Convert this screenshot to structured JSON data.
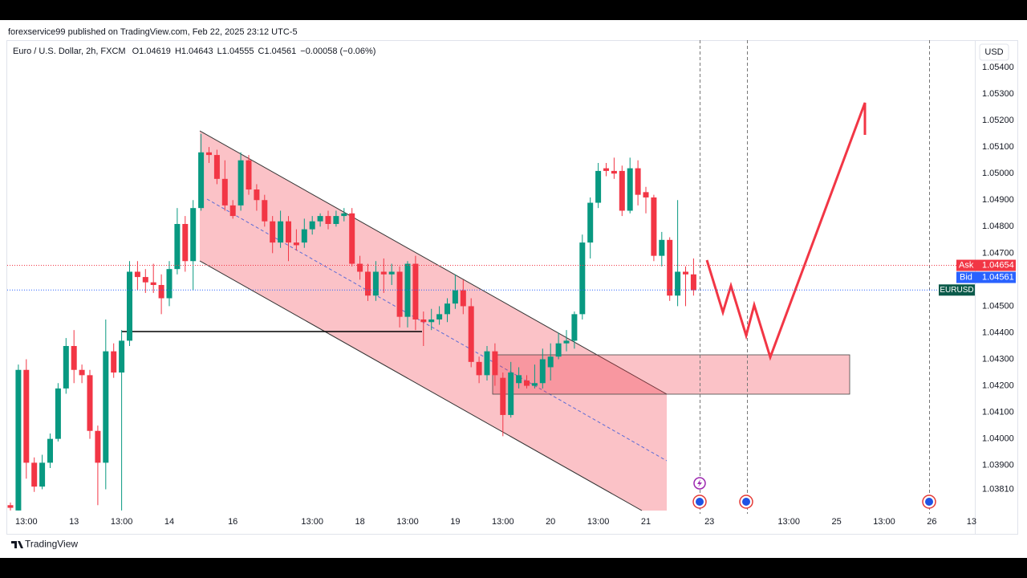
{
  "chart_data": {
    "type": "candlestick",
    "published": "forexservice99 published on TradingView.com, Feb 22, 2025 23:12 UTC-5",
    "title": "Euro / U.S. Dollar, 2h, FXCM",
    "legend_values": [
      "O1.04619",
      "H1.04643",
      "L1.04555",
      "C1.04561",
      "−0.00058 (−0.06%)"
    ],
    "currency": "USD",
    "ask_label": "Ask",
    "ask_price": 1.04654,
    "bid_label": "Bid",
    "bid_price": 1.04561,
    "symbol": "EURUSD",
    "brand": "TradingView",
    "up_color": "#089981",
    "down_color": "#f23645",
    "grid": false,
    "ylim": [
      1.03657,
      1.05503
    ],
    "yticks": [
      {
        "value": 1.054,
        "label": "1.05400"
      },
      {
        "value": 1.053,
        "label": "1.05300"
      },
      {
        "value": 1.052,
        "label": "1.05200"
      },
      {
        "value": 1.051,
        "label": "1.05100"
      },
      {
        "value": 1.05,
        "label": "1.05000"
      },
      {
        "value": 1.049,
        "label": "1.04900"
      },
      {
        "value": 1.048,
        "label": "1.04800"
      },
      {
        "value": 1.047,
        "label": "1.04700"
      },
      {
        "value": 1.045,
        "label": "1.04500"
      },
      {
        "value": 1.044,
        "label": "1.04400"
      },
      {
        "value": 1.043,
        "label": "1.04300"
      },
      {
        "value": 1.042,
        "label": "1.04200"
      },
      {
        "value": 1.041,
        "label": "1.04100"
      },
      {
        "value": 1.04,
        "label": "1.04000"
      },
      {
        "value": 1.039,
        "label": "1.03900"
      },
      {
        "value": 1.0381,
        "label": "1.03810"
      }
    ],
    "categories": [
      null,
      null,
      "13:00",
      null,
      null,
      null,
      null,
      null,
      "13",
      null,
      null,
      null,
      null,
      null,
      "13:00",
      null,
      null,
      null,
      null,
      null,
      "14",
      null,
      null,
      null,
      null,
      null,
      null,
      null,
      "16",
      null,
      null,
      null,
      null,
      null,
      null,
      null,
      null,
      null,
      "13:00",
      null,
      null,
      null,
      null,
      null,
      "18",
      null,
      null,
      null,
      null,
      null,
      "13:00",
      null,
      null,
      null,
      null,
      null,
      "19",
      null,
      null,
      null,
      null,
      null,
      "13:00",
      null,
      null,
      null,
      null,
      null,
      "20",
      null,
      null,
      null,
      null,
      null,
      "13:00",
      null,
      null,
      null,
      null,
      null,
      "21",
      null,
      null,
      null,
      null,
      null,
      null,
      null,
      "23",
      null,
      null,
      null,
      null,
      null,
      null,
      null,
      null,
      null,
      "13:00",
      null,
      null,
      null,
      null,
      null,
      "25",
      null,
      null,
      null,
      null,
      null,
      "13:00",
      null,
      null,
      null,
      null,
      null,
      "26",
      null,
      null,
      null,
      null,
      "13"
    ],
    "open": [
      1.0375,
      1.0373,
      1.0426,
      1.0391,
      1.0382,
      1.0391,
      1.04,
      1.0419,
      1.0435,
      1.0426,
      1.0424,
      1.0403,
      1.0391,
      1.0433,
      1.0425,
      1.0437,
      1.0463,
      1.0461,
      1.0459,
      1.0458,
      1.0453,
      1.0464,
      1.0481,
      1.0467,
      1.0487,
      1.0508,
      1.0507,
      1.0498,
      1.0488,
      1.0488,
      1.0505,
      1.0494,
      1.049,
      1.0482,
      1.0474,
      1.0482,
      1.0474,
      1.0474,
      1.0479,
      1.0482,
      1.0484,
      1.0481,
      1.0484,
      1.0485,
      1.0466,
      1.0463,
      1.0454,
      1.0463,
      1.0462,
      1.0463,
      1.0446,
      1.0466,
      1.0445,
      1.0444,
      1.0445,
      1.0447,
      1.0451,
      1.0456,
      1.045,
      1.0429,
      1.0424,
      1.0433,
      1.0423,
      1.0409,
      1.0421,
      1.0422,
      1.042,
      1.0421,
      1.0427,
      1.0431,
      1.0436,
      1.0437,
      1.0447,
      1.0474,
      1.0489,
      1.0502,
      1.0501,
      1.0501,
      1.0486,
      1.0502,
      1.0493,
      1.0491,
      1.0469,
      1.0475,
      1.0454,
      1.0463,
      1.0462,
      null,
      null,
      null,
      null,
      null,
      null,
      null,
      null,
      null,
      null,
      null,
      null,
      null,
      null,
      null,
      null,
      null,
      null,
      null,
      null,
      null,
      null,
      null,
      null,
      null,
      null,
      null,
      null,
      null,
      null,
      null,
      null,
      null,
      null,
      null
    ],
    "high": [
      1.0376,
      1.0428,
      1.043,
      1.0393,
      1.0394,
      1.0402,
      1.0421,
      1.0438,
      1.0441,
      1.0428,
      1.0426,
      1.0405,
      1.0445,
      1.0436,
      1.0441,
      1.0467,
      1.0467,
      1.0464,
      1.0466,
      1.0462,
      1.0467,
      1.0487,
      1.0484,
      1.049,
      1.0515,
      1.051,
      1.0509,
      1.0505,
      1.049,
      1.0508,
      1.0507,
      1.0496,
      1.0492,
      1.0484,
      1.0486,
      1.0484,
      1.0479,
      1.0483,
      1.0484,
      1.0485,
      1.0486,
      1.0486,
      1.0487,
      1.0487,
      1.0469,
      1.0466,
      1.0467,
      1.0468,
      1.0466,
      1.0465,
      1.0467,
      1.0469,
      1.0448,
      1.0449,
      1.045,
      1.0453,
      1.0462,
      1.046,
      1.0453,
      1.0431,
      1.0435,
      1.0436,
      1.0425,
      1.0429,
      1.0427,
      1.0424,
      1.0428,
      1.0434,
      1.0436,
      1.044,
      1.0441,
      1.0448,
      1.0477,
      1.0491,
      1.0504,
      1.0504,
      1.0506,
      1.0503,
      1.0506,
      1.0505,
      1.0495,
      1.0492,
      1.0478,
      1.0476,
      1.049,
      1.0465,
      1.0468,
      null,
      null,
      null,
      null,
      null,
      null,
      null,
      null,
      null,
      null,
      null,
      null,
      null,
      null,
      null,
      null,
      null,
      null,
      null,
      null,
      null,
      null,
      null,
      null,
      null,
      null,
      null,
      null,
      null,
      null,
      null,
      null,
      null,
      null,
      null
    ],
    "low": [
      1.0373,
      1.0373,
      1.0385,
      1.038,
      1.0381,
      1.0389,
      1.0399,
      1.0417,
      1.0421,
      1.0421,
      1.04,
      1.0375,
      1.0381,
      1.0423,
      1.0373,
      1.0435,
      1.0456,
      1.0455,
      1.0455,
      1.0447,
      1.045,
      1.0462,
      1.0463,
      1.0456,
      1.0486,
      1.0504,
      1.0496,
      1.0486,
      1.0483,
      1.0486,
      1.0492,
      1.0486,
      1.048,
      1.047,
      1.0472,
      1.0467,
      1.0471,
      1.0472,
      1.0477,
      1.048,
      1.0479,
      1.048,
      1.0482,
      1.0465,
      1.046,
      1.0452,
      1.0452,
      1.0455,
      1.0458,
      1.0442,
      1.0442,
      1.0441,
      1.0435,
      1.0441,
      1.0443,
      1.0444,
      1.0449,
      1.0447,
      1.0427,
      1.0421,
      1.0422,
      1.042,
      1.0401,
      1.0408,
      1.0419,
      1.0419,
      1.0419,
      1.0419,
      1.0422,
      1.043,
      1.0433,
      1.0434,
      1.0445,
      1.0468,
      1.0487,
      1.0499,
      1.0498,
      1.0484,
      1.0485,
      1.0488,
      1.0485,
      1.0467,
      1.0465,
      1.0452,
      1.045,
      1.045,
      1.0454,
      null,
      null,
      null,
      null,
      null,
      null,
      null,
      null,
      null,
      null,
      null,
      null,
      null,
      null,
      null,
      null,
      null,
      null,
      null,
      null,
      null,
      null,
      null,
      null,
      null,
      null,
      null,
      null,
      null,
      null,
      null,
      null,
      null,
      null,
      null
    ],
    "close": [
      1.0374,
      1.0426,
      1.0391,
      1.0382,
      1.0391,
      1.04,
      1.0419,
      1.0435,
      1.0426,
      1.0424,
      1.0403,
      1.0391,
      1.0433,
      1.0425,
      1.0437,
      1.0463,
      1.0461,
      1.0459,
      1.0458,
      1.0453,
      1.0464,
      1.0481,
      1.0467,
      1.0487,
      1.0508,
      1.0507,
      1.0498,
      1.0488,
      1.0484,
      1.0505,
      1.0494,
      1.049,
      1.0482,
      1.0474,
      1.0482,
      1.0474,
      1.0473,
      1.0479,
      1.0482,
      1.0484,
      1.0481,
      1.0484,
      1.0485,
      1.0466,
      1.0463,
      1.0454,
      1.0463,
      1.0462,
      1.0463,
      1.0446,
      1.0466,
      1.0445,
      1.0444,
      1.0445,
      1.0447,
      1.0451,
      1.0456,
      1.045,
      1.0429,
      1.0424,
      1.0433,
      1.0424,
      1.0409,
      1.0425,
      1.0424,
      1.042,
      1.0421,
      1.043,
      1.0431,
      1.0436,
      1.0437,
      1.0447,
      1.0474,
      1.0489,
      1.0501,
      1.0501,
      1.05,
      1.0486,
      1.0502,
      1.0492,
      1.0491,
      1.0469,
      1.0475,
      1.0454,
      1.0463,
      1.0462,
      1.0456,
      null,
      null,
      null,
      null,
      null,
      null,
      null,
      null,
      null,
      null,
      null,
      null,
      null,
      null,
      null,
      null,
      null,
      null,
      null,
      null,
      null,
      null,
      null,
      null,
      null,
      null,
      null,
      null,
      null,
      null,
      null,
      null,
      null,
      null,
      null
    ]
  }
}
